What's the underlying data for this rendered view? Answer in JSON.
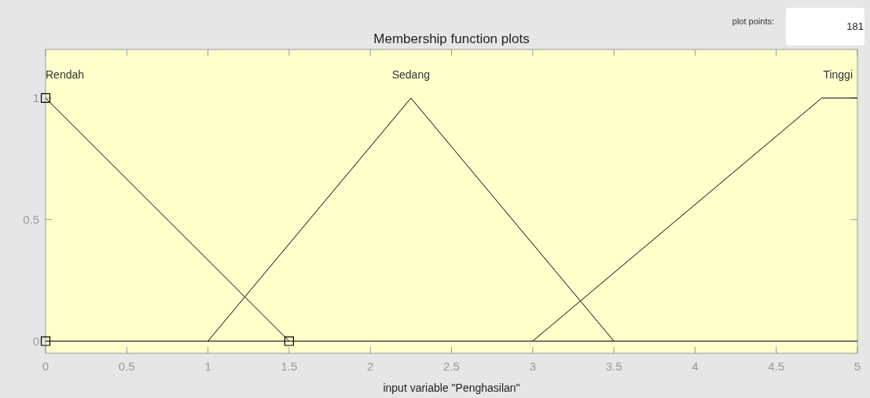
{
  "chart_data": {
    "type": "line",
    "title": "Membership function plots",
    "xlabel": "input variable \"Penghasilan\"",
    "xlim": [
      0,
      5
    ],
    "xticks": [
      0,
      0.5,
      1,
      1.5,
      2,
      2.5,
      3,
      3.5,
      4,
      4.5,
      5
    ],
    "ylim": [
      -0.05,
      1.2
    ],
    "yticks": [
      0,
      0.5,
      1
    ],
    "series": [
      {
        "name": "Rendah",
        "color": "#000000",
        "x": [
          0,
          1.5
        ],
        "values": [
          1,
          0
        ]
      },
      {
        "name": "Sedang",
        "color": "#000000",
        "x": [
          1,
          2.25,
          3.5
        ],
        "values": [
          0,
          1,
          0
        ]
      },
      {
        "name": "Tinggi",
        "color": "#000000",
        "x": [
          3,
          4.78,
          5
        ],
        "values": [
          0,
          1,
          1
        ]
      },
      {
        "type": "scatter",
        "color": "#000000",
        "marker": "square",
        "x": [
          0,
          0,
          1.5
        ],
        "values": [
          1,
          0,
          0
        ]
      }
    ],
    "ref_lines": [
      {
        "axis": "y",
        "value": 0,
        "color": "#000000"
      }
    ],
    "annotations": [
      "plot points:",
      "181"
    ],
    "grid": false,
    "marker": "none",
    "line_style": "solid"
  }
}
